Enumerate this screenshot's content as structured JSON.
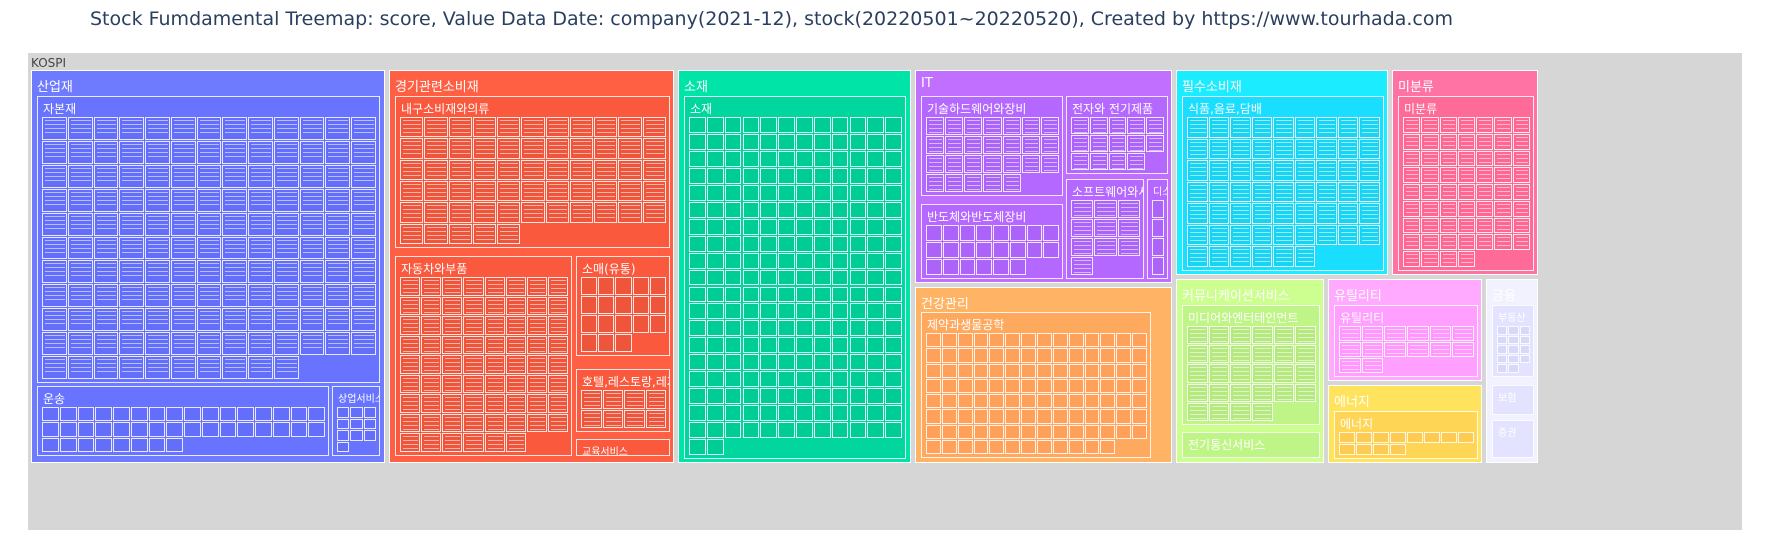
{
  "title": "Stock Fumdamental Treemap: score, Value Data Date: company(2021-12), stock(20220501~20220520), Created by https://www.tourhada.com",
  "chart_data": {
    "type": "treemap",
    "root": "KOSPI",
    "colors": {
      "산업재": "#636efa",
      "경기관련소비재": "#ef553b",
      "소재": "#00cc96",
      "IT": "#ab63fa",
      "건강관리": "#ffa15a",
      "필수소비재": "#19d3f3",
      "미분류": "#ff6692",
      "커뮤니케이션서비스": "#b6e880",
      "유틸리티": "#ff97ff",
      "에너지": "#fecb52",
      "금융": "#d8d8f8",
      "root": "#d6d6d6"
    },
    "sectors": [
      {
        "name": "산업재",
        "industries": [
          {
            "name": "자본재",
            "leaves": 140
          },
          {
            "name": "운송",
            "leaves": 40
          },
          {
            "name": "상업서비스와공급품",
            "leaves": 10
          }
        ]
      },
      {
        "name": "경기관련소비재",
        "industries": [
          {
            "name": "내구소비재와의류",
            "leaves": 60
          },
          {
            "name": "자동차와부품",
            "leaves": 70
          },
          {
            "name": "소매(유통)",
            "leaves": 18
          },
          {
            "name": "호텔,레스토랑,레저 등",
            "leaves": 8
          },
          {
            "name": "교육서비스",
            "leaves": 0
          }
        ]
      },
      {
        "name": "소재",
        "industries": [
          {
            "name": "소재",
            "leaves": 230
          }
        ]
      },
      {
        "name": "IT",
        "industries": [
          {
            "name": "기술하드웨어와장비",
            "leaves": 26
          },
          {
            "name": "전자와 전기제품",
            "leaves": 14
          },
          {
            "name": "반도체와반도체장비",
            "leaves": 22
          },
          {
            "name": "소프트웨어와서비스",
            "leaves": 10
          },
          {
            "name": "디스플레이",
            "leaves": 4
          }
        ]
      },
      {
        "name": "건강관리",
        "industries": [
          {
            "name": "제약과생물공학",
            "leaves": 110
          }
        ]
      },
      {
        "name": "필수소비재",
        "industries": [
          {
            "name": "식품,음료,담배",
            "leaves": 60
          }
        ]
      },
      {
        "name": "미분류",
        "industries": [
          {
            "name": "미분류",
            "leaves": 60
          }
        ]
      },
      {
        "name": "커뮤니케이션서비스",
        "industries": [
          {
            "name": "미디어와엔터테인먼트",
            "leaves": 28
          },
          {
            "name": "전기통신서비스",
            "leaves": 0
          }
        ]
      },
      {
        "name": "유틸리티",
        "industries": [
          {
            "name": "유틸리티",
            "leaves": 14
          }
        ]
      },
      {
        "name": "에너지",
        "industries": [
          {
            "name": "에너지",
            "leaves": 12
          }
        ]
      },
      {
        "name": "금융",
        "industries": [
          {
            "name": "부동산",
            "leaves": 14
          },
          {
            "name": "보험",
            "leaves": 0
          },
          {
            "name": "증권",
            "leaves": 0
          }
        ]
      }
    ]
  }
}
